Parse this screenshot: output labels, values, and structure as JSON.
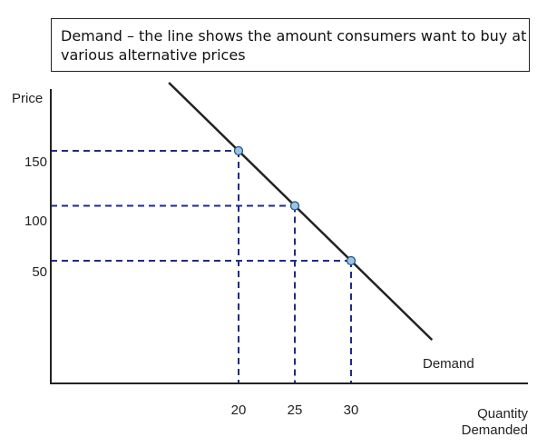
{
  "chart_data": {
    "type": "line",
    "title": [
      "Demand – the line shows the amount consumers want to buy at",
      "various alternative prices"
    ],
    "ylabel": "Price",
    "xlabel": [
      "Quantity",
      "Demanded"
    ],
    "yticks": [
      150,
      100,
      50
    ],
    "xticks": [
      20,
      25,
      30
    ],
    "series": [
      {
        "name": "Demand",
        "points": [
          {
            "x": 20,
            "y": 150
          },
          {
            "x": 25,
            "y": 100
          },
          {
            "x": 30,
            "y": 50
          }
        ]
      }
    ],
    "grid": false,
    "colors": {
      "demand_line": "#222222",
      "guide_lines": "#1f2a8c",
      "point_fill": "#9cc3e6",
      "point_stroke": "#1f4e79",
      "axes": "#222222"
    }
  }
}
